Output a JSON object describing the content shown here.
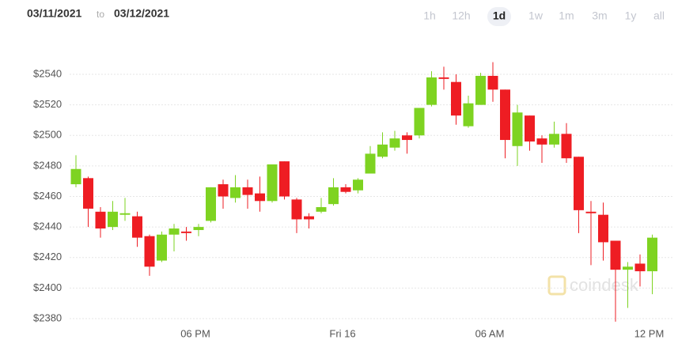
{
  "header": {
    "date_from": "03/11/2021",
    "separator": "to",
    "date_to": "03/12/2021",
    "range_options": [
      "1h",
      "12h",
      "1d",
      "1w",
      "1m",
      "3m",
      "1y",
      "all"
    ],
    "active_range": 2
  },
  "watermark": "coindesk",
  "chart_data": {
    "type": "candlestick",
    "categories": [
      null,
      null,
      null,
      null,
      null,
      null,
      null,
      null,
      null,
      null,
      "06 PM",
      null,
      null,
      null,
      null,
      null,
      null,
      null,
      null,
      null,
      null,
      null,
      "Fri 16",
      null,
      null,
      null,
      null,
      null,
      null,
      null,
      null,
      null,
      null,
      null,
      "06 AM",
      null,
      null,
      null,
      null,
      null,
      null,
      null,
      null,
      null,
      null,
      null,
      null,
      "12 PM"
    ],
    "open": [
      2468,
      2472,
      2450,
      2440,
      2448,
      2447,
      2434,
      2418,
      2435,
      2437,
      2438,
      2444,
      2468,
      2459,
      2466,
      2462,
      2457,
      2483,
      2458,
      2447,
      2450,
      2455,
      2466,
      2464,
      2475,
      2486,
      2492,
      2500,
      2500,
      2520,
      2538,
      2535,
      2506,
      2520,
      2539,
      2530,
      2493,
      2513,
      2498,
      2494,
      2501,
      2486,
      2450,
      2448,
      2431,
      2412,
      2416,
      2411
    ],
    "high": [
      2487,
      2473,
      2453,
      2457,
      2459,
      2450,
      2435,
      2437,
      2442,
      2440,
      2442,
      2466,
      2471,
      2474,
      2471,
      2473,
      2481,
      2483,
      2459,
      2449,
      2459,
      2472,
      2468,
      2472,
      2493,
      2502,
      2503,
      2502,
      2518,
      2542,
      2545,
      2540,
      2526,
      2541,
      2548,
      2530,
      2520,
      2513,
      2500,
      2509,
      2508,
      2486,
      2457,
      2456,
      2431,
      2417,
      2422,
      2435
    ],
    "low": [
      2466,
      2440,
      2433,
      2438,
      2444,
      2427,
      2408,
      2417,
      2424,
      2431,
      2434,
      2443,
      2452,
      2456,
      2452,
      2450,
      2456,
      2458,
      2436,
      2439,
      2449,
      2454,
      2462,
      2462,
      2475,
      2485,
      2490,
      2488,
      2498,
      2519,
      2530,
      2507,
      2505,
      2520,
      2522,
      2485,
      2480,
      2490,
      2482,
      2492,
      2482,
      2436,
      2415,
      2418,
      2378,
      2387,
      2401,
      2396
    ],
    "close": [
      2478,
      2452,
      2439,
      2450,
      2449,
      2433,
      2414,
      2435,
      2439,
      2436,
      2440,
      2466,
      2460,
      2466,
      2461,
      2457,
      2481,
      2460,
      2445,
      2445,
      2453,
      2466,
      2463,
      2471,
      2488,
      2494,
      2498,
      2497,
      2518,
      2538,
      2537,
      2513,
      2521,
      2539,
      2530,
      2497,
      2515,
      2496,
      2494,
      2501,
      2485,
      2451,
      2449,
      2430,
      2412,
      2414,
      2411,
      2433
    ],
    "up_color": "#7ed321",
    "down_color": "#ee1d23",
    "ylim": [
      2376,
      2560
    ],
    "yticks": [
      {
        "value": 2380,
        "label": "$2380"
      },
      {
        "value": 2400,
        "label": "$2400"
      },
      {
        "value": 2420,
        "label": "$2420"
      },
      {
        "value": 2440,
        "label": "$2440"
      },
      {
        "value": 2460,
        "label": "$2460"
      },
      {
        "value": 2480,
        "label": "$2480"
      },
      {
        "value": 2500,
        "label": "$2500"
      },
      {
        "value": 2520,
        "label": "$2520"
      },
      {
        "value": 2540,
        "label": "$2540"
      }
    ],
    "grid": true
  }
}
